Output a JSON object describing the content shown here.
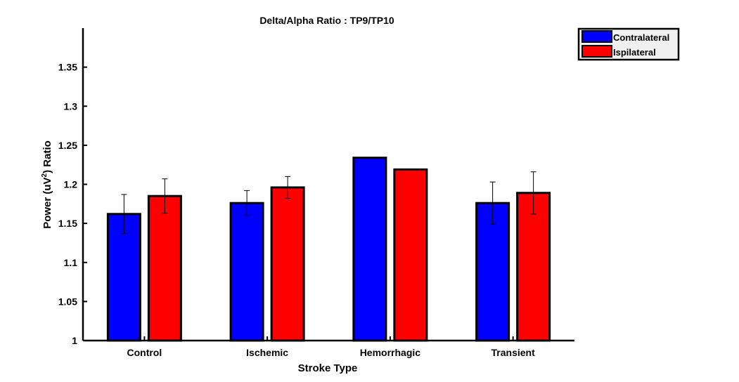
{
  "chart_data": {
    "type": "bar",
    "title": "Delta/Alpha Ratio :  TP9/TP10",
    "xlabel": "Stroke Type",
    "ylabel": {
      "prefix": "Power (uV",
      "sup": "2",
      "suffix": ") Ratio"
    },
    "categories": [
      "Control",
      "Ischemic",
      "Hemorrhagic",
      "Transient"
    ],
    "series": [
      {
        "name": "Contralateral",
        "color": "#0000ff",
        "values": [
          1.162,
          1.176,
          1.234,
          1.176
        ],
        "errors": [
          0.025,
          0.016,
          null,
          0.027
        ]
      },
      {
        "name": "Ispilateral",
        "color": "#ff0000",
        "values": [
          1.185,
          1.196,
          1.219,
          1.189
        ],
        "errors": [
          0.022,
          0.014,
          null,
          0.027
        ]
      }
    ],
    "ylim": [
      1,
      1.4
    ],
    "yticks": [
      "1",
      "1.05",
      "1.1",
      "1.15",
      "1.2",
      "1.25",
      "1.3",
      "1.35"
    ],
    "grid": false,
    "legend_position": "top-right"
  }
}
